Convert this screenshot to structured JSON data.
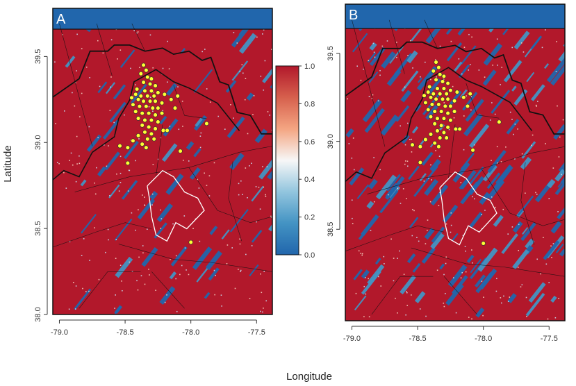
{
  "colors": {
    "high": "#b2182b",
    "high_mid": "#d6604d",
    "low": "#2166ac",
    "low_mid": "#4393c3",
    "point_fill": "#ffff33",
    "point_stroke": "#333333",
    "boundary": "#111111",
    "highlight_county": "#ffffff"
  },
  "chart_data": [
    {
      "type": "heatmap",
      "panel_label": "A",
      "xlabel": "Longitude",
      "ylabel": "Latitude",
      "xlim": [
        -79.05,
        -77.38
      ],
      "ylim": [
        38.0,
        39.78
      ],
      "xticks": [
        -79.0,
        -78.5,
        -78.0,
        -77.5
      ],
      "xtick_labels": [
        "-79.0",
        "-78.5",
        "-78.0",
        "-77.5"
      ],
      "yticks": [
        38.0,
        38.5,
        39.0,
        39.5
      ],
      "ytick_labels": [
        "38.0",
        "38.5",
        "39.0",
        "39.5"
      ],
      "red_fraction": 0.82,
      "colorbar": {
        "min": 0.0,
        "max": 1.0,
        "ticks": [
          0.0,
          0.2,
          0.4,
          0.6,
          0.8,
          1.0
        ],
        "tick_labels": [
          "0.0",
          "0.2",
          "0.4",
          "0.6",
          "0.8",
          "1.0"
        ],
        "colors": [
          "#2166ac",
          "#4393c3",
          "#92c5de",
          "#f7f7f7",
          "#f4a582",
          "#d6604d",
          "#b2182b"
        ]
      },
      "points": [
        [
          -78.36,
          39.45
        ],
        [
          -78.34,
          39.42
        ],
        [
          -78.38,
          39.4
        ],
        [
          -78.33,
          39.38
        ],
        [
          -78.3,
          39.37
        ],
        [
          -78.36,
          39.35
        ],
        [
          -78.31,
          39.34
        ],
        [
          -78.27,
          39.33
        ],
        [
          -78.41,
          39.31
        ],
        [
          -78.35,
          39.3
        ],
        [
          -78.3,
          39.3
        ],
        [
          -78.25,
          39.29
        ],
        [
          -78.2,
          39.28
        ],
        [
          -78.42,
          39.28
        ],
        [
          -78.38,
          39.27
        ],
        [
          -78.33,
          39.27
        ],
        [
          -78.28,
          39.27
        ],
        [
          -78.45,
          39.26
        ],
        [
          -78.4,
          39.25
        ],
        [
          -78.36,
          39.24
        ],
        [
          -78.31,
          39.24
        ],
        [
          -78.27,
          39.24
        ],
        [
          -78.22,
          39.23
        ],
        [
          -78.15,
          39.25
        ],
        [
          -78.1,
          39.27
        ],
        [
          -78.44,
          39.22
        ],
        [
          -78.39,
          39.21
        ],
        [
          -78.34,
          39.21
        ],
        [
          -78.29,
          39.2
        ],
        [
          -78.25,
          39.2
        ],
        [
          -78.42,
          39.18
        ],
        [
          -78.37,
          39.17
        ],
        [
          -78.32,
          39.17
        ],
        [
          -78.27,
          39.16
        ],
        [
          -78.22,
          39.17
        ],
        [
          -78.4,
          39.14
        ],
        [
          -78.35,
          39.13
        ],
        [
          -78.3,
          39.13
        ],
        [
          -78.25,
          39.12
        ],
        [
          -78.37,
          39.1
        ],
        [
          -78.32,
          39.09
        ],
        [
          -78.27,
          39.08
        ],
        [
          -78.21,
          39.07
        ],
        [
          -78.35,
          39.06
        ],
        [
          -78.3,
          39.05
        ],
        [
          -78.4,
          39.04
        ],
        [
          -78.33,
          39.02
        ],
        [
          -78.28,
          39.02
        ],
        [
          -78.44,
          39.01
        ],
        [
          -78.37,
          38.99
        ],
        [
          -78.54,
          38.98
        ],
        [
          -78.48,
          38.97
        ],
        [
          -78.34,
          38.97
        ],
        [
          -78.08,
          38.95
        ],
        [
          -77.88,
          39.11
        ],
        [
          -78.48,
          38.88
        ],
        [
          -78.0,
          38.42
        ],
        [
          -78.18,
          39.07
        ],
        [
          -78.12,
          39.2
        ]
      ]
    },
    {
      "type": "heatmap",
      "panel_label": "B",
      "xlabel": "Longitude",
      "ylabel": "Latitude",
      "xlim": [
        -79.05,
        -77.38
      ],
      "ylim": [
        37.98,
        39.78
      ],
      "xticks": [
        -79.0,
        -78.5,
        -78.0,
        -77.5
      ],
      "xtick_labels": [
        "-79.0",
        "-78.5",
        "-78.0",
        "-77.5"
      ],
      "yticks": [
        38.5,
        39.0,
        39.5
      ],
      "ytick_labels": [
        "38.5",
        "39.0",
        "39.5"
      ],
      "red_fraction": 0.6,
      "points": [
        [
          -78.36,
          39.45
        ],
        [
          -78.34,
          39.42
        ],
        [
          -78.38,
          39.4
        ],
        [
          -78.33,
          39.38
        ],
        [
          -78.3,
          39.37
        ],
        [
          -78.36,
          39.35
        ],
        [
          -78.31,
          39.34
        ],
        [
          -78.27,
          39.33
        ],
        [
          -78.41,
          39.31
        ],
        [
          -78.35,
          39.3
        ],
        [
          -78.3,
          39.3
        ],
        [
          -78.25,
          39.29
        ],
        [
          -78.2,
          39.28
        ],
        [
          -78.42,
          39.28
        ],
        [
          -78.38,
          39.27
        ],
        [
          -78.33,
          39.27
        ],
        [
          -78.28,
          39.27
        ],
        [
          -78.45,
          39.26
        ],
        [
          -78.4,
          39.25
        ],
        [
          -78.36,
          39.24
        ],
        [
          -78.31,
          39.24
        ],
        [
          -78.27,
          39.24
        ],
        [
          -78.22,
          39.23
        ],
        [
          -78.15,
          39.25
        ],
        [
          -78.1,
          39.27
        ],
        [
          -78.44,
          39.22
        ],
        [
          -78.39,
          39.21
        ],
        [
          -78.34,
          39.21
        ],
        [
          -78.29,
          39.2
        ],
        [
          -78.25,
          39.2
        ],
        [
          -78.42,
          39.18
        ],
        [
          -78.37,
          39.17
        ],
        [
          -78.32,
          39.17
        ],
        [
          -78.27,
          39.16
        ],
        [
          -78.22,
          39.17
        ],
        [
          -78.4,
          39.14
        ],
        [
          -78.35,
          39.13
        ],
        [
          -78.3,
          39.13
        ],
        [
          -78.25,
          39.12
        ],
        [
          -78.37,
          39.1
        ],
        [
          -78.32,
          39.09
        ],
        [
          -78.27,
          39.08
        ],
        [
          -78.21,
          39.07
        ],
        [
          -78.35,
          39.06
        ],
        [
          -78.3,
          39.05
        ],
        [
          -78.4,
          39.04
        ],
        [
          -78.33,
          39.02
        ],
        [
          -78.28,
          39.02
        ],
        [
          -78.44,
          39.01
        ],
        [
          -78.37,
          38.99
        ],
        [
          -78.54,
          38.98
        ],
        [
          -78.48,
          38.97
        ],
        [
          -78.34,
          38.97
        ],
        [
          -78.08,
          38.95
        ],
        [
          -77.88,
          39.11
        ],
        [
          -78.48,
          38.88
        ],
        [
          -78.0,
          38.42
        ],
        [
          -78.18,
          39.07
        ],
        [
          -78.12,
          39.2
        ]
      ]
    }
  ]
}
